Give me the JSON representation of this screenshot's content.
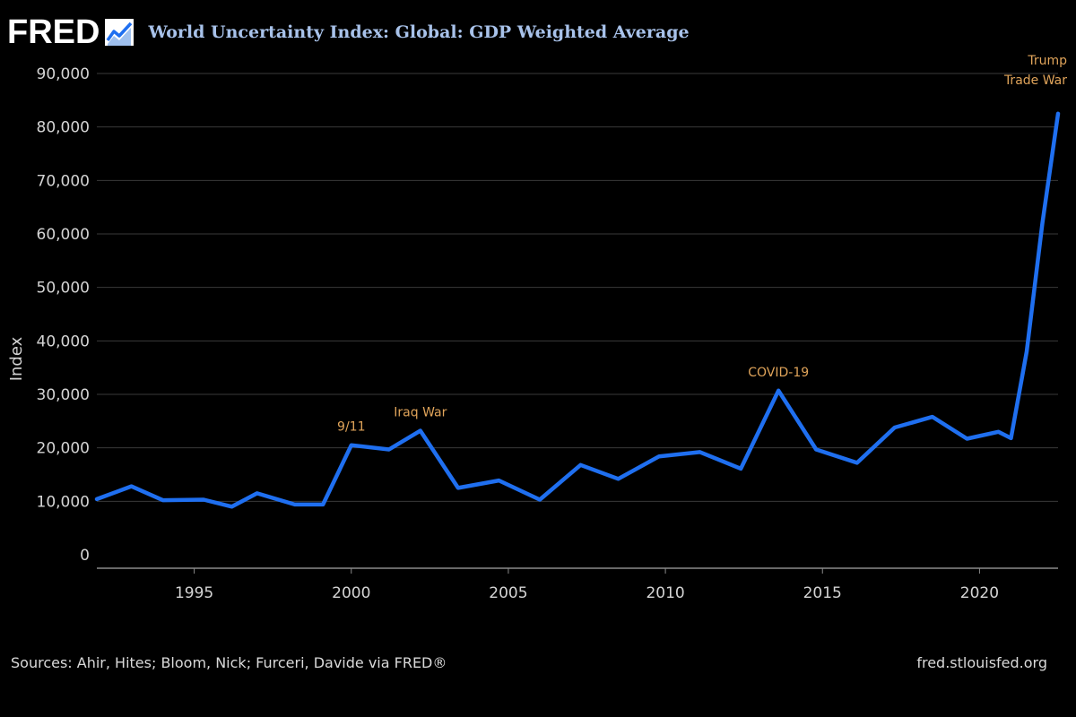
{
  "header": {
    "logo_text": "FRED",
    "logo_icon": "line-chart-icon",
    "title": "World Uncertainty Index: Global: GDP Weighted Average"
  },
  "colors": {
    "background": "#000000",
    "line": "#1f6ff0",
    "title": "#a8c2ea",
    "annotation": "#e0a45a",
    "text": "#d9d9d9",
    "grid": "#3a3a3a"
  },
  "chart_data": {
    "type": "line",
    "ylabel": "Index",
    "xlabel": "",
    "xlim": [
      1991.9,
      2022.5
    ],
    "ylim": [
      0,
      90000
    ],
    "y_ticks": [
      {
        "value": 0,
        "label": "0"
      },
      {
        "value": 10000,
        "label": "10,000"
      },
      {
        "value": 20000,
        "label": "20,000"
      },
      {
        "value": 30000,
        "label": "30,000"
      },
      {
        "value": 40000,
        "label": "40,000"
      },
      {
        "value": 50000,
        "label": "50,000"
      },
      {
        "value": 60000,
        "label": "60,000"
      },
      {
        "value": 70000,
        "label": "70,000"
      },
      {
        "value": 80000,
        "label": "80,000"
      },
      {
        "value": 90000,
        "label": "90,000"
      }
    ],
    "x_ticks": [
      {
        "value": 1995,
        "label": "1995"
      },
      {
        "value": 2000,
        "label": "2000"
      },
      {
        "value": 2005,
        "label": "2005"
      },
      {
        "value": 2010,
        "label": "2010"
      },
      {
        "value": 2015,
        "label": "2015"
      },
      {
        "value": 2020,
        "label": "2020"
      }
    ],
    "grid": "horizontal",
    "series": [
      {
        "x": [
          1991.9,
          1993.0,
          1994.0,
          1995.3,
          1996.2,
          1997.0,
          1998.2,
          1999.1,
          2000.0,
          2001.2,
          2002.2,
          2003.4,
          2004.7,
          2006.0,
          2007.3,
          2008.5,
          2009.8,
          2011.1,
          2012.4,
          2013.6,
          2014.8,
          2016.1,
          2017.3,
          2018.5,
          2019.6,
          2020.6,
          2021.0,
          2021.5,
          2022.0,
          2022.5
        ],
        "y": [
          10400,
          12800,
          10200,
          10300,
          9000,
          11500,
          9400,
          9400,
          20500,
          19700,
          23200,
          12500,
          13900,
          10300,
          16800,
          14200,
          18400,
          19200,
          16100,
          30700,
          19700,
          17200,
          23800,
          25800,
          21700,
          23000,
          21800,
          38000,
          62000,
          82500
        ]
      }
    ],
    "annotations": [
      {
        "text": "9/11",
        "x": 2000.0,
        "y": 20500
      },
      {
        "text": "Iraq War",
        "x": 2002.2,
        "y": 23200
      },
      {
        "text": "COVID-19",
        "x": 2013.6,
        "y": 30700
      },
      {
        "lines": [
          "Trump",
          "Trade War"
        ],
        "x": 2022.5,
        "y": 82500
      }
    ]
  },
  "footer": {
    "sources": "Sources: Ahir, Hites; Bloom, Nick; Furceri, Davide via FRED®",
    "url": "fred.stlouisfed.org"
  }
}
